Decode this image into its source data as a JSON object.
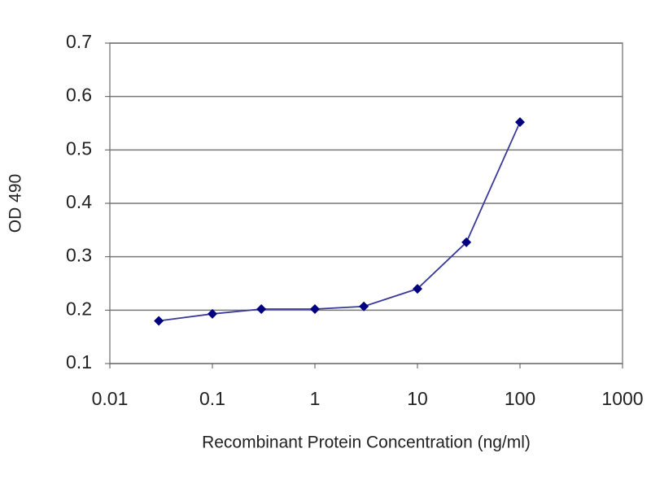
{
  "chart_data": {
    "type": "line",
    "x": [
      0.03,
      0.1,
      0.3,
      1,
      3,
      10,
      30,
      100
    ],
    "values": [
      0.18,
      0.193,
      0.202,
      0.202,
      0.207,
      0.24,
      0.327,
      0.552
    ],
    "color": "#3a3a9a",
    "marker_color": "#000080",
    "xlabel": "Recombinant Protein Concentration (ng/ml)",
    "ylabel": "OD 490",
    "xscale": "log",
    "xlim": [
      0.01,
      1000
    ],
    "xticks": [
      0.01,
      0.1,
      1,
      10,
      100,
      1000
    ],
    "ylim": [
      0.1,
      0.7
    ],
    "yticks": [
      0.1,
      0.2,
      0.3,
      0.4,
      0.5,
      0.6,
      0.7
    ],
    "grid": true
  }
}
